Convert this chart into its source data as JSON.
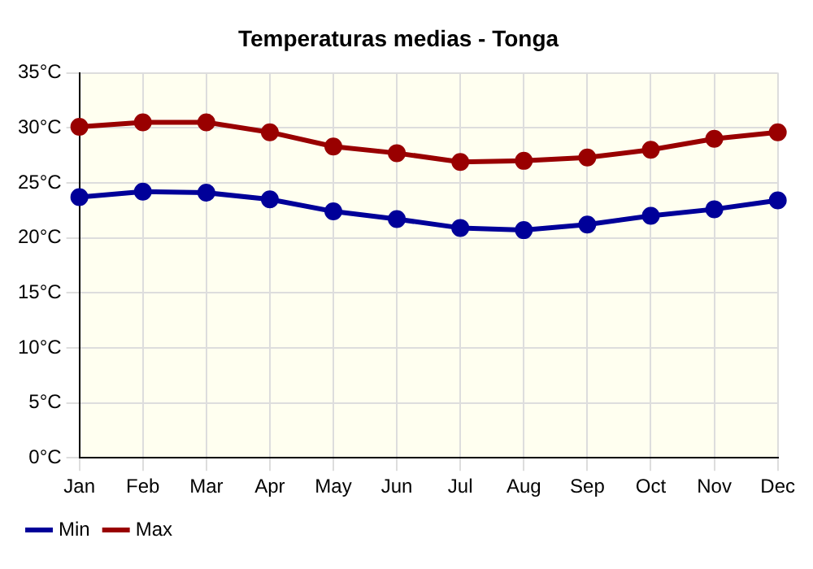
{
  "chart_data": {
    "type": "line",
    "title": "Temperaturas medias - Tonga",
    "categories": [
      "Jan",
      "Feb",
      "Mar",
      "Apr",
      "May",
      "Jun",
      "Jul",
      "Aug",
      "Sep",
      "Oct",
      "Nov",
      "Dec"
    ],
    "series": [
      {
        "name": "Min",
        "color": "#000099",
        "values": [
          23.7,
          24.2,
          24.1,
          23.5,
          22.4,
          21.7,
          20.9,
          20.7,
          21.2,
          22.0,
          22.6,
          23.4
        ]
      },
      {
        "name": "Max",
        "color": "#990000",
        "values": [
          30.1,
          30.5,
          30.5,
          29.6,
          28.3,
          27.7,
          26.9,
          27.0,
          27.3,
          28.0,
          29.0,
          29.6
        ]
      }
    ],
    "ylim": [
      0,
      35
    ],
    "yticks": [
      {
        "value": 0,
        "label": "0°C"
      },
      {
        "value": 5,
        "label": "5°C"
      },
      {
        "value": 10,
        "label": "10°C"
      },
      {
        "value": 15,
        "label": "15°C"
      },
      {
        "value": 20,
        "label": "20°C"
      },
      {
        "value": 25,
        "label": "25°C"
      },
      {
        "value": 30,
        "label": "30°C"
      },
      {
        "value": 35,
        "label": "35°C"
      }
    ],
    "grid": true,
    "legend": "bottom left",
    "marker": "circle",
    "line_style": "solid"
  }
}
